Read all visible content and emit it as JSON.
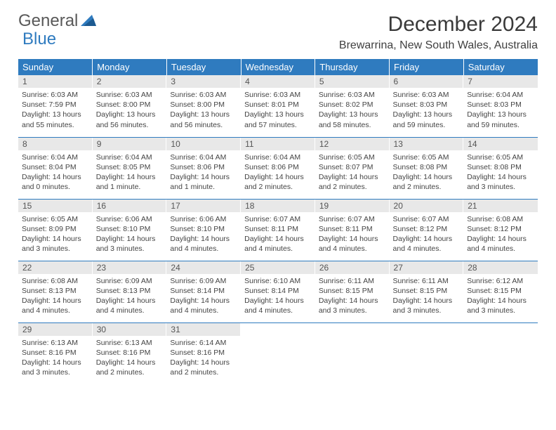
{
  "logo": {
    "textA": "General",
    "textB": "Blue"
  },
  "title": "December 2024",
  "location": "Brewarrina, New South Wales, Australia",
  "colors": {
    "header_bg": "#2f7bbf",
    "header_text": "#ffffff",
    "daynum_bg": "#e8e8e8",
    "row_border": "#2f7bbf",
    "body_text": "#444444",
    "logo_gray": "#595959",
    "logo_blue": "#2f7bbf"
  },
  "weekdays": [
    "Sunday",
    "Monday",
    "Tuesday",
    "Wednesday",
    "Thursday",
    "Friday",
    "Saturday"
  ],
  "weeks": [
    [
      {
        "n": "1",
        "sr": "6:03 AM",
        "ss": "7:59 PM",
        "dl": "13 hours and 55 minutes."
      },
      {
        "n": "2",
        "sr": "6:03 AM",
        "ss": "8:00 PM",
        "dl": "13 hours and 56 minutes."
      },
      {
        "n": "3",
        "sr": "6:03 AM",
        "ss": "8:00 PM",
        "dl": "13 hours and 56 minutes."
      },
      {
        "n": "4",
        "sr": "6:03 AM",
        "ss": "8:01 PM",
        "dl": "13 hours and 57 minutes."
      },
      {
        "n": "5",
        "sr": "6:03 AM",
        "ss": "8:02 PM",
        "dl": "13 hours and 58 minutes."
      },
      {
        "n": "6",
        "sr": "6:03 AM",
        "ss": "8:03 PM",
        "dl": "13 hours and 59 minutes."
      },
      {
        "n": "7",
        "sr": "6:04 AM",
        "ss": "8:03 PM",
        "dl": "13 hours and 59 minutes."
      }
    ],
    [
      {
        "n": "8",
        "sr": "6:04 AM",
        "ss": "8:04 PM",
        "dl": "14 hours and 0 minutes."
      },
      {
        "n": "9",
        "sr": "6:04 AM",
        "ss": "8:05 PM",
        "dl": "14 hours and 1 minute."
      },
      {
        "n": "10",
        "sr": "6:04 AM",
        "ss": "8:06 PM",
        "dl": "14 hours and 1 minute."
      },
      {
        "n": "11",
        "sr": "6:04 AM",
        "ss": "8:06 PM",
        "dl": "14 hours and 2 minutes."
      },
      {
        "n": "12",
        "sr": "6:05 AM",
        "ss": "8:07 PM",
        "dl": "14 hours and 2 minutes."
      },
      {
        "n": "13",
        "sr": "6:05 AM",
        "ss": "8:08 PM",
        "dl": "14 hours and 2 minutes."
      },
      {
        "n": "14",
        "sr": "6:05 AM",
        "ss": "8:08 PM",
        "dl": "14 hours and 3 minutes."
      }
    ],
    [
      {
        "n": "15",
        "sr": "6:05 AM",
        "ss": "8:09 PM",
        "dl": "14 hours and 3 minutes."
      },
      {
        "n": "16",
        "sr": "6:06 AM",
        "ss": "8:10 PM",
        "dl": "14 hours and 3 minutes."
      },
      {
        "n": "17",
        "sr": "6:06 AM",
        "ss": "8:10 PM",
        "dl": "14 hours and 4 minutes."
      },
      {
        "n": "18",
        "sr": "6:07 AM",
        "ss": "8:11 PM",
        "dl": "14 hours and 4 minutes."
      },
      {
        "n": "19",
        "sr": "6:07 AM",
        "ss": "8:11 PM",
        "dl": "14 hours and 4 minutes."
      },
      {
        "n": "20",
        "sr": "6:07 AM",
        "ss": "8:12 PM",
        "dl": "14 hours and 4 minutes."
      },
      {
        "n": "21",
        "sr": "6:08 AM",
        "ss": "8:12 PM",
        "dl": "14 hours and 4 minutes."
      }
    ],
    [
      {
        "n": "22",
        "sr": "6:08 AM",
        "ss": "8:13 PM",
        "dl": "14 hours and 4 minutes."
      },
      {
        "n": "23",
        "sr": "6:09 AM",
        "ss": "8:13 PM",
        "dl": "14 hours and 4 minutes."
      },
      {
        "n": "24",
        "sr": "6:09 AM",
        "ss": "8:14 PM",
        "dl": "14 hours and 4 minutes."
      },
      {
        "n": "25",
        "sr": "6:10 AM",
        "ss": "8:14 PM",
        "dl": "14 hours and 4 minutes."
      },
      {
        "n": "26",
        "sr": "6:11 AM",
        "ss": "8:15 PM",
        "dl": "14 hours and 3 minutes."
      },
      {
        "n": "27",
        "sr": "6:11 AM",
        "ss": "8:15 PM",
        "dl": "14 hours and 3 minutes."
      },
      {
        "n": "28",
        "sr": "6:12 AM",
        "ss": "8:15 PM",
        "dl": "14 hours and 3 minutes."
      }
    ],
    [
      {
        "n": "29",
        "sr": "6:13 AM",
        "ss": "8:16 PM",
        "dl": "14 hours and 3 minutes."
      },
      {
        "n": "30",
        "sr": "6:13 AM",
        "ss": "8:16 PM",
        "dl": "14 hours and 2 minutes."
      },
      {
        "n": "31",
        "sr": "6:14 AM",
        "ss": "8:16 PM",
        "dl": "14 hours and 2 minutes."
      },
      null,
      null,
      null,
      null
    ]
  ],
  "labels": {
    "sunrise": "Sunrise:",
    "sunset": "Sunset:",
    "daylight": "Daylight:"
  }
}
